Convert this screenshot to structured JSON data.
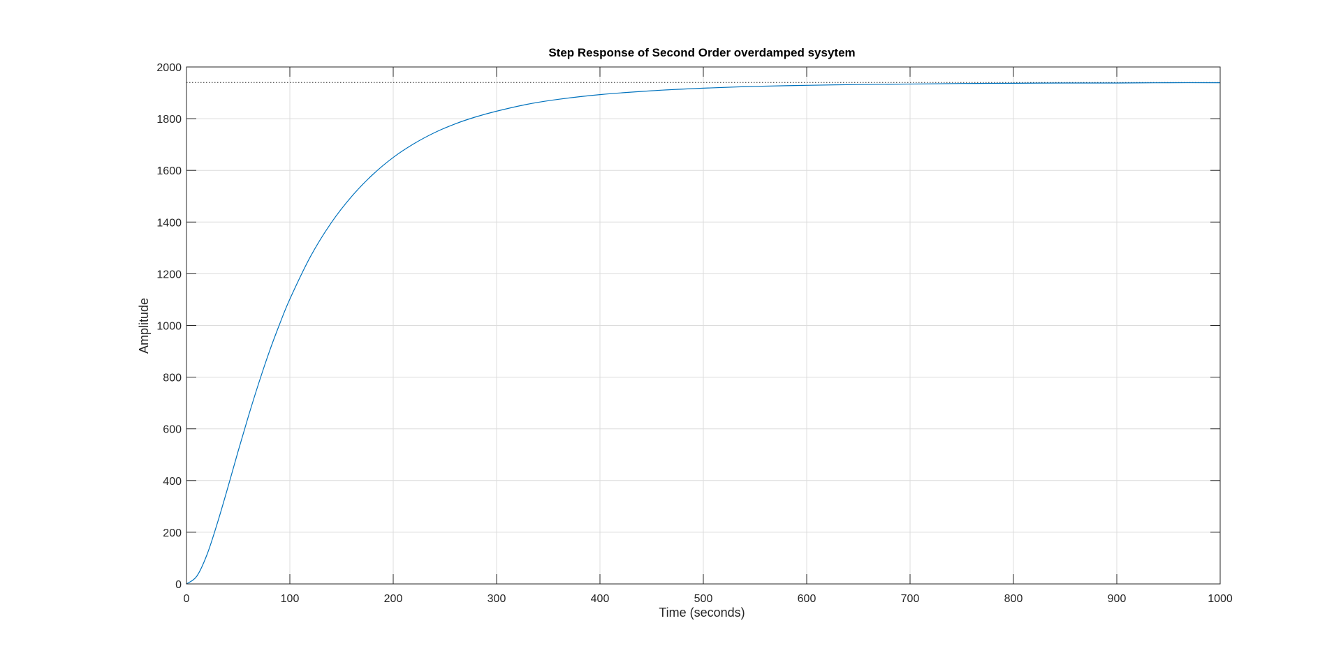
{
  "chart_data": {
    "type": "line",
    "title": "Step Response of Second Order overdamped sysytem",
    "xlabel": "Time (seconds)",
    "ylabel": "Amplitude",
    "xlim": [
      0,
      1000
    ],
    "ylim": [
      0,
      2000
    ],
    "xticks": [
      0,
      100,
      200,
      300,
      400,
      500,
      600,
      700,
      800,
      900,
      1000
    ],
    "yticks": [
      0,
      200,
      400,
      600,
      800,
      1000,
      1200,
      1400,
      1600,
      1800,
      2000
    ],
    "grid": true,
    "final_value": 1940,
    "series": [
      {
        "color": "#0072BD",
        "x": [
          0,
          10,
          20,
          30,
          40,
          50,
          60,
          70,
          80,
          90,
          100,
          120,
          140,
          160,
          180,
          200,
          220,
          240,
          260,
          280,
          300,
          330,
          360,
          400,
          450,
          500,
          550,
          600,
          650,
          700,
          750,
          800,
          850,
          900,
          950,
          1000
        ],
        "y": [
          0,
          30,
          115,
          237,
          373,
          514,
          650,
          778,
          897,
          1004,
          1102,
          1267,
          1397,
          1500,
          1583,
          1650,
          1703,
          1746,
          1780,
          1807,
          1829,
          1856,
          1875,
          1893,
          1908,
          1918,
          1925,
          1929,
          1932,
          1934,
          1936,
          1937,
          1938,
          1938,
          1939,
          1939
        ]
      }
    ],
    "colors": {
      "line": "#0072BD",
      "grid": "#dcdcdc",
      "axes": "#262626",
      "final_value_line": "#262626"
    }
  }
}
